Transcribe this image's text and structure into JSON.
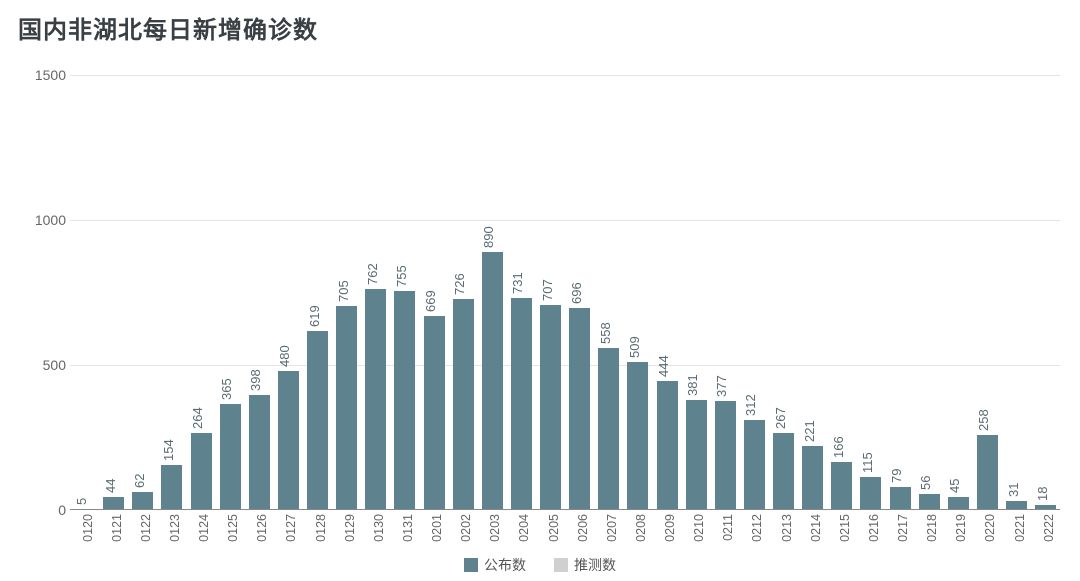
{
  "chart": {
    "type": "bar",
    "title": "国内非湖北每日新增确诊数",
    "title_fontsize": 24,
    "title_color": "#3a3f44",
    "background_color": "#ffffff",
    "grid_color": "#e5e5e5",
    "baseline_color": "#888888",
    "bar_color": "#5f828f",
    "bar_width_ratio": 0.72,
    "value_label_color": "#5a6a72",
    "value_label_fontsize": 13,
    "x_label_color": "#666666",
    "x_label_fontsize": 12.5,
    "y_label_color": "#666666",
    "y_label_fontsize": 14,
    "ylim": [
      0,
      1500
    ],
    "yticks": [
      0,
      500,
      1000,
      1500
    ],
    "categories": [
      "0120",
      "0121",
      "0122",
      "0123",
      "0124",
      "0125",
      "0126",
      "0127",
      "0128",
      "0129",
      "0130",
      "0131",
      "0201",
      "0202",
      "0203",
      "0204",
      "0205",
      "0206",
      "0207",
      "0208",
      "0209",
      "0210",
      "0211",
      "0212",
      "0213",
      "0214",
      "0215",
      "0216",
      "0217",
      "0218",
      "0219",
      "0220",
      "0221",
      "0222"
    ],
    "values": [
      5,
      44,
      62,
      154,
      264,
      365,
      398,
      480,
      619,
      705,
      762,
      755,
      669,
      726,
      890,
      731,
      707,
      696,
      558,
      509,
      444,
      381,
      377,
      312,
      267,
      221,
      166,
      115,
      79,
      56,
      45,
      258,
      31,
      18
    ],
    "legend": {
      "items": [
        {
          "label": "公布数",
          "color": "#5f828f"
        },
        {
          "label": "推测数",
          "color": "#d0d0d0"
        }
      ],
      "fontsize": 14,
      "text_color": "#555555"
    }
  }
}
